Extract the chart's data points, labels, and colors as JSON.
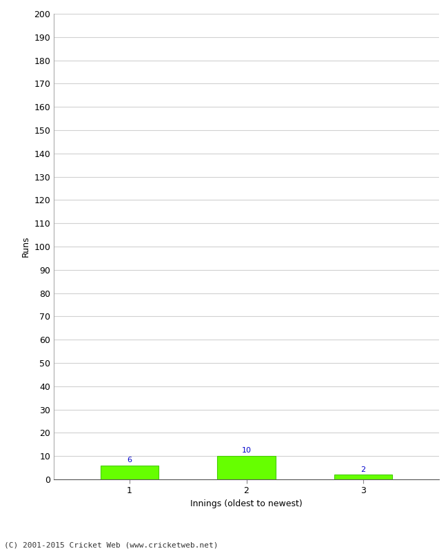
{
  "categories": [
    1,
    2,
    3
  ],
  "values": [
    6,
    10,
    2
  ],
  "bar_color": "#66ff00",
  "bar_edge_color": "#44cc00",
  "label_color": "#0000cc",
  "ylabel": "Runs",
  "xlabel": "Innings (oldest to newest)",
  "ylim": [
    0,
    200
  ],
  "yticks": [
    0,
    10,
    20,
    30,
    40,
    50,
    60,
    70,
    80,
    90,
    100,
    110,
    120,
    130,
    140,
    150,
    160,
    170,
    180,
    190,
    200
  ],
  "footer": "(C) 2001-2015 Cricket Web (www.cricketweb.net)",
  "background_color": "#ffffff",
  "grid_color": "#d0d0d0"
}
